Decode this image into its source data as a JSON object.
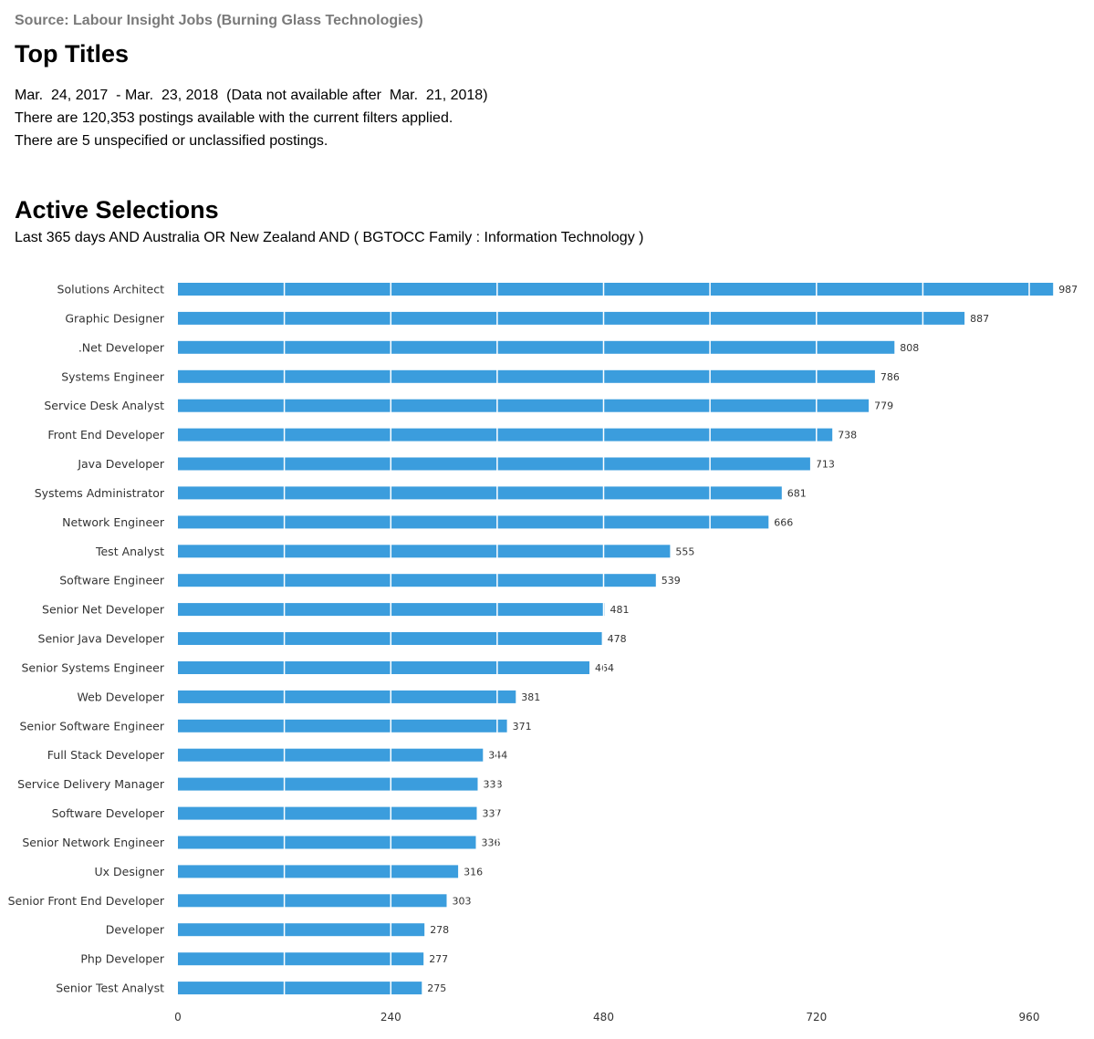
{
  "header": {
    "source": "Source: Labour Insight Jobs (Burning Glass Technologies)",
    "title": "Top Titles",
    "date_range": "Mar.  24, 2017  - Mar.  23, 2018  (Data not available after  Mar.  21, 2018)",
    "postings_line": "There are 120,353 postings available with the current filters applied.",
    "unspecified_line": "There are 5 unspecified or unclassified postings."
  },
  "selections": {
    "title": "Active Selections",
    "text": "Last 365 days AND Australia OR New Zealand AND ( BGTOCC Family : Information Technology )"
  },
  "colors": {
    "bar": "#3b9ddd",
    "gridline": "#ffffff"
  },
  "chart_data": {
    "type": "bar",
    "orientation": "horizontal",
    "categories": [
      "Solutions Architect",
      "Graphic Designer",
      ".Net Developer",
      "Systems Engineer",
      "Service Desk Analyst",
      "Front End Developer",
      "Java Developer",
      "Systems Administrator",
      "Network Engineer",
      "Test Analyst",
      "Software Engineer",
      "Senior Net Developer",
      "Senior Java Developer",
      "Senior Systems Engineer",
      "Web Developer",
      "Senior Software Engineer",
      "Full Stack Developer",
      "Service Delivery Manager",
      "Software Developer",
      "Senior Network Engineer",
      "Ux Designer",
      "Senior Front End Developer",
      "Developer",
      "Php Developer",
      "Senior Test Analyst"
    ],
    "values": [
      987,
      887,
      808,
      786,
      779,
      738,
      713,
      681,
      666,
      555,
      539,
      481,
      478,
      464,
      381,
      371,
      344,
      338,
      337,
      336,
      316,
      303,
      278,
      277,
      275
    ],
    "xlim": [
      0,
      960
    ],
    "xticks": [
      0,
      240,
      480,
      720,
      960
    ],
    "gridlines": [
      0,
      120,
      240,
      360,
      480,
      600,
      720,
      840,
      960
    ],
    "data_labels": true,
    "grid": true
  }
}
